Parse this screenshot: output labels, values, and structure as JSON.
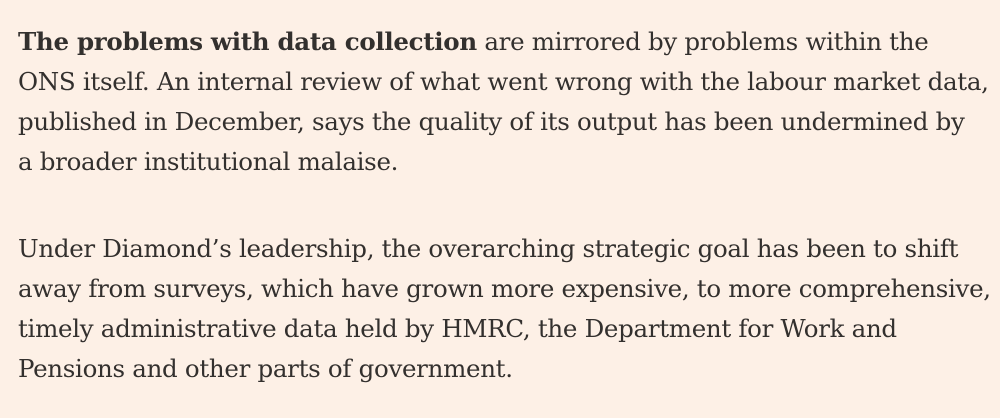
{
  "article": {
    "paragraphs": [
      {
        "lead": "The problems with data collection",
        "lines": [
          " are mirrored by problems within the",
          "ONS itself. An internal review of what went wrong with the labour market data,",
          "published in December, says the quality of its output has been undermined by",
          "a broader institutional malaise."
        ]
      },
      {
        "lines": [
          "Under Diamond’s leadership, the overarching strategic goal has been to shift",
          "away from surveys, which have grown more expensive, to more comprehensive,",
          "timely administrative data held by HMRC, the Department for Work and",
          "Pensions and other parts of government."
        ]
      }
    ]
  }
}
